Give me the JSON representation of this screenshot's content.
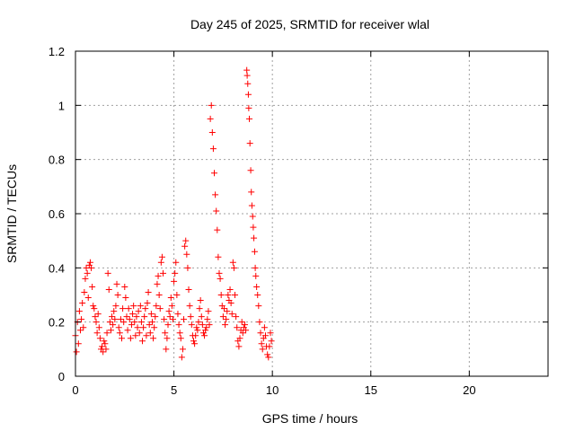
{
  "chart_data": {
    "type": "scatter",
    "title": "Day 245 of 2025, SRMTID for receiver wlal",
    "xlabel": "GPS time / hours",
    "ylabel": "SRMTID / TECUs",
    "xlim": [
      0,
      24
    ],
    "ylim": [
      0,
      1.2
    ],
    "xticks": [
      0,
      5,
      10,
      15,
      20
    ],
    "yticks": [
      0,
      0.2,
      0.4,
      0.6,
      0.8,
      1,
      1.2
    ],
    "xtick_labels": [
      "0",
      "5",
      "10",
      "15",
      "20"
    ],
    "ytick_labels": [
      "0",
      "0.2",
      "0.4",
      "0.6",
      "0.8",
      "1",
      "1.2"
    ],
    "grid": true,
    "marker": "plus",
    "series": [
      {
        "name": "SRMTID",
        "color": "#ff0000",
        "points": [
          [
            0.0,
            0.15
          ],
          [
            0.05,
            0.09
          ],
          [
            0.1,
            0.2
          ],
          [
            0.15,
            0.12
          ],
          [
            0.2,
            0.24
          ],
          [
            0.25,
            0.17
          ],
          [
            0.3,
            0.21
          ],
          [
            0.35,
            0.27
          ],
          [
            0.4,
            0.18
          ],
          [
            0.45,
            0.31
          ],
          [
            0.5,
            0.36
          ],
          [
            0.55,
            0.4
          ],
          [
            0.6,
            0.38
          ],
          [
            0.65,
            0.29
          ],
          [
            0.7,
            0.41
          ],
          [
            0.75,
            0.42
          ],
          [
            0.8,
            0.4
          ],
          [
            0.85,
            0.33
          ],
          [
            0.9,
            0.26
          ],
          [
            0.95,
            0.25
          ],
          [
            1.0,
            0.22
          ],
          [
            1.05,
            0.2
          ],
          [
            1.1,
            0.16
          ],
          [
            1.15,
            0.23
          ],
          [
            1.2,
            0.18
          ],
          [
            1.25,
            0.14
          ],
          [
            1.3,
            0.1
          ],
          [
            1.35,
            0.11
          ],
          [
            1.4,
            0.09
          ],
          [
            1.45,
            0.13
          ],
          [
            1.5,
            0.12
          ],
          [
            1.55,
            0.1
          ],
          [
            1.6,
            0.16
          ],
          [
            1.65,
            0.38
          ],
          [
            1.7,
            0.32
          ],
          [
            1.75,
            0.2
          ],
          [
            1.8,
            0.17
          ],
          [
            1.85,
            0.22
          ],
          [
            1.9,
            0.19
          ],
          [
            1.95,
            0.24
          ],
          [
            2.0,
            0.21
          ],
          [
            2.05,
            0.26
          ],
          [
            2.1,
            0.34
          ],
          [
            2.15,
            0.3
          ],
          [
            2.2,
            0.18
          ],
          [
            2.25,
            0.16
          ],
          [
            2.3,
            0.21
          ],
          [
            2.35,
            0.14
          ],
          [
            2.4,
            0.25
          ],
          [
            2.45,
            0.2
          ],
          [
            2.5,
            0.33
          ],
          [
            2.55,
            0.29
          ],
          [
            2.6,
            0.22
          ],
          [
            2.65,
            0.17
          ],
          [
            2.7,
            0.25
          ],
          [
            2.75,
            0.21
          ],
          [
            2.8,
            0.14
          ],
          [
            2.85,
            0.19
          ],
          [
            2.9,
            0.23
          ],
          [
            2.95,
            0.26
          ],
          [
            3.0,
            0.2
          ],
          [
            3.05,
            0.15
          ],
          [
            3.1,
            0.22
          ],
          [
            3.15,
            0.18
          ],
          [
            3.2,
            0.24
          ],
          [
            3.25,
            0.16
          ],
          [
            3.3,
            0.26
          ],
          [
            3.35,
            0.2
          ],
          [
            3.4,
            0.13
          ],
          [
            3.45,
            0.18
          ],
          [
            3.5,
            0.22
          ],
          [
            3.55,
            0.25
          ],
          [
            3.6,
            0.15
          ],
          [
            3.65,
            0.27
          ],
          [
            3.7,
            0.31
          ],
          [
            3.75,
            0.19
          ],
          [
            3.8,
            0.16
          ],
          [
            3.85,
            0.23
          ],
          [
            3.9,
            0.2
          ],
          [
            3.95,
            0.14
          ],
          [
            4.0,
            0.18
          ],
          [
            4.05,
            0.22
          ],
          [
            4.1,
            0.26
          ],
          [
            4.15,
            0.34
          ],
          [
            4.2,
            0.37
          ],
          [
            4.25,
            0.3
          ],
          [
            4.3,
            0.25
          ],
          [
            4.35,
            0.42
          ],
          [
            4.4,
            0.44
          ],
          [
            4.45,
            0.38
          ],
          [
            4.5,
            0.21
          ],
          [
            4.55,
            0.16
          ],
          [
            4.6,
            0.1
          ],
          [
            4.65,
            0.14
          ],
          [
            4.7,
            0.19
          ],
          [
            4.75,
            0.24
          ],
          [
            4.8,
            0.22
          ],
          [
            4.85,
            0.29
          ],
          [
            4.9,
            0.26
          ],
          [
            4.95,
            0.21
          ],
          [
            5.0,
            0.35
          ],
          [
            5.05,
            0.38
          ],
          [
            5.1,
            0.42
          ],
          [
            5.15,
            0.3
          ],
          [
            5.2,
            0.23
          ],
          [
            5.25,
            0.19
          ],
          [
            5.3,
            0.16
          ],
          [
            5.35,
            0.14
          ],
          [
            5.4,
            0.07
          ],
          [
            5.45,
            0.1
          ],
          [
            5.5,
            0.21
          ],
          [
            5.55,
            0.48
          ],
          [
            5.6,
            0.5
          ],
          [
            5.65,
            0.45
          ],
          [
            5.7,
            0.4
          ],
          [
            5.75,
            0.32
          ],
          [
            5.8,
            0.26
          ],
          [
            5.85,
            0.22
          ],
          [
            5.9,
            0.19
          ],
          [
            5.95,
            0.15
          ],
          [
            6.0,
            0.13
          ],
          [
            6.05,
            0.12
          ],
          [
            6.1,
            0.15
          ],
          [
            6.15,
            0.18
          ],
          [
            6.2,
            0.17
          ],
          [
            6.25,
            0.2
          ],
          [
            6.3,
            0.25
          ],
          [
            6.35,
            0.28
          ],
          [
            6.4,
            0.22
          ],
          [
            6.45,
            0.19
          ],
          [
            6.5,
            0.16
          ],
          [
            6.55,
            0.15
          ],
          [
            6.6,
            0.17
          ],
          [
            6.65,
            0.18
          ],
          [
            6.7,
            0.21
          ],
          [
            6.75,
            0.24
          ],
          [
            6.8,
            0.19
          ],
          [
            6.85,
            0.95
          ],
          [
            6.9,
            1.0
          ],
          [
            6.95,
            0.9
          ],
          [
            7.0,
            0.84
          ],
          [
            7.05,
            0.75
          ],
          [
            7.1,
            0.67
          ],
          [
            7.15,
            0.61
          ],
          [
            7.2,
            0.54
          ],
          [
            7.25,
            0.44
          ],
          [
            7.3,
            0.38
          ],
          [
            7.35,
            0.36
          ],
          [
            7.4,
            0.3
          ],
          [
            7.45,
            0.26
          ],
          [
            7.5,
            0.22
          ],
          [
            7.55,
            0.25
          ],
          [
            7.6,
            0.19
          ],
          [
            7.65,
            0.21
          ],
          [
            7.7,
            0.24
          ],
          [
            7.75,
            0.3
          ],
          [
            7.8,
            0.28
          ],
          [
            7.85,
            0.32
          ],
          [
            7.9,
            0.27
          ],
          [
            7.95,
            0.23
          ],
          [
            8.0,
            0.42
          ],
          [
            8.05,
            0.4
          ],
          [
            8.1,
            0.3
          ],
          [
            8.15,
            0.22
          ],
          [
            8.2,
            0.18
          ],
          [
            8.25,
            0.13
          ],
          [
            8.3,
            0.11
          ],
          [
            8.35,
            0.14
          ],
          [
            8.4,
            0.17
          ],
          [
            8.45,
            0.2
          ],
          [
            8.5,
            0.16
          ],
          [
            8.55,
            0.18
          ],
          [
            8.6,
            0.19
          ],
          [
            8.65,
            0.17
          ],
          [
            8.7,
            1.13
          ],
          [
            8.72,
            1.11
          ],
          [
            8.75,
            1.08
          ],
          [
            8.78,
            1.04
          ],
          [
            8.8,
            0.99
          ],
          [
            8.83,
            0.95
          ],
          [
            8.86,
            0.86
          ],
          [
            8.9,
            0.76
          ],
          [
            8.93,
            0.68
          ],
          [
            8.96,
            0.63
          ],
          [
            9.0,
            0.59
          ],
          [
            9.03,
            0.55
          ],
          [
            9.06,
            0.51
          ],
          [
            9.1,
            0.46
          ],
          [
            9.13,
            0.4
          ],
          [
            9.16,
            0.37
          ],
          [
            9.2,
            0.33
          ],
          [
            9.25,
            0.3
          ],
          [
            9.3,
            0.26
          ],
          [
            9.35,
            0.2
          ],
          [
            9.4,
            0.16
          ],
          [
            9.45,
            0.12
          ],
          [
            9.5,
            0.1
          ],
          [
            9.55,
            0.14
          ],
          [
            9.6,
            0.18
          ],
          [
            9.65,
            0.15
          ],
          [
            9.7,
            0.11
          ],
          [
            9.75,
            0.08
          ],
          [
            9.8,
            0.07
          ],
          [
            9.85,
            0.11
          ],
          [
            9.9,
            0.16
          ],
          [
            9.95,
            0.13
          ]
        ]
      }
    ]
  }
}
